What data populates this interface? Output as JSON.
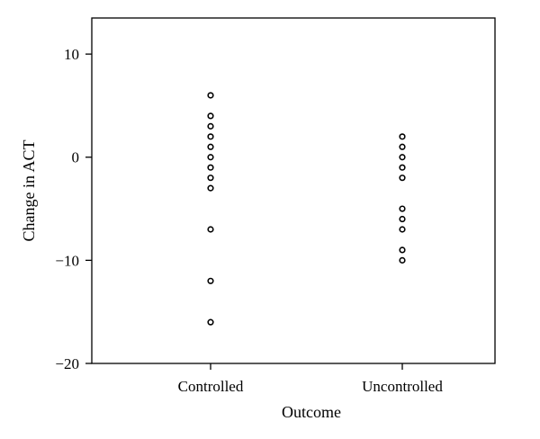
{
  "chart_data": {
    "type": "scatter",
    "title": "",
    "xlabel": "Outcome",
    "ylabel": "Change in ACT",
    "categories": [
      "Controlled",
      "Uncontrolled"
    ],
    "ylim": [
      -20,
      13.5
    ],
    "yticks": [
      10,
      0,
      -10,
      -20
    ],
    "ytick_labels": [
      "10",
      "0",
      "−10",
      "−20"
    ],
    "grid": false,
    "legend": "none",
    "series": [
      {
        "category": "Controlled",
        "values": [
          6,
          4,
          3,
          2,
          1,
          0,
          -1,
          -2,
          -3,
          -7,
          -12,
          -16
        ]
      },
      {
        "category": "Uncontrolled",
        "values": [
          2,
          1,
          0,
          -1,
          -2,
          -5,
          -6,
          -7,
          -9,
          -10
        ]
      }
    ],
    "marker": "open-circle",
    "color": "#000000"
  }
}
